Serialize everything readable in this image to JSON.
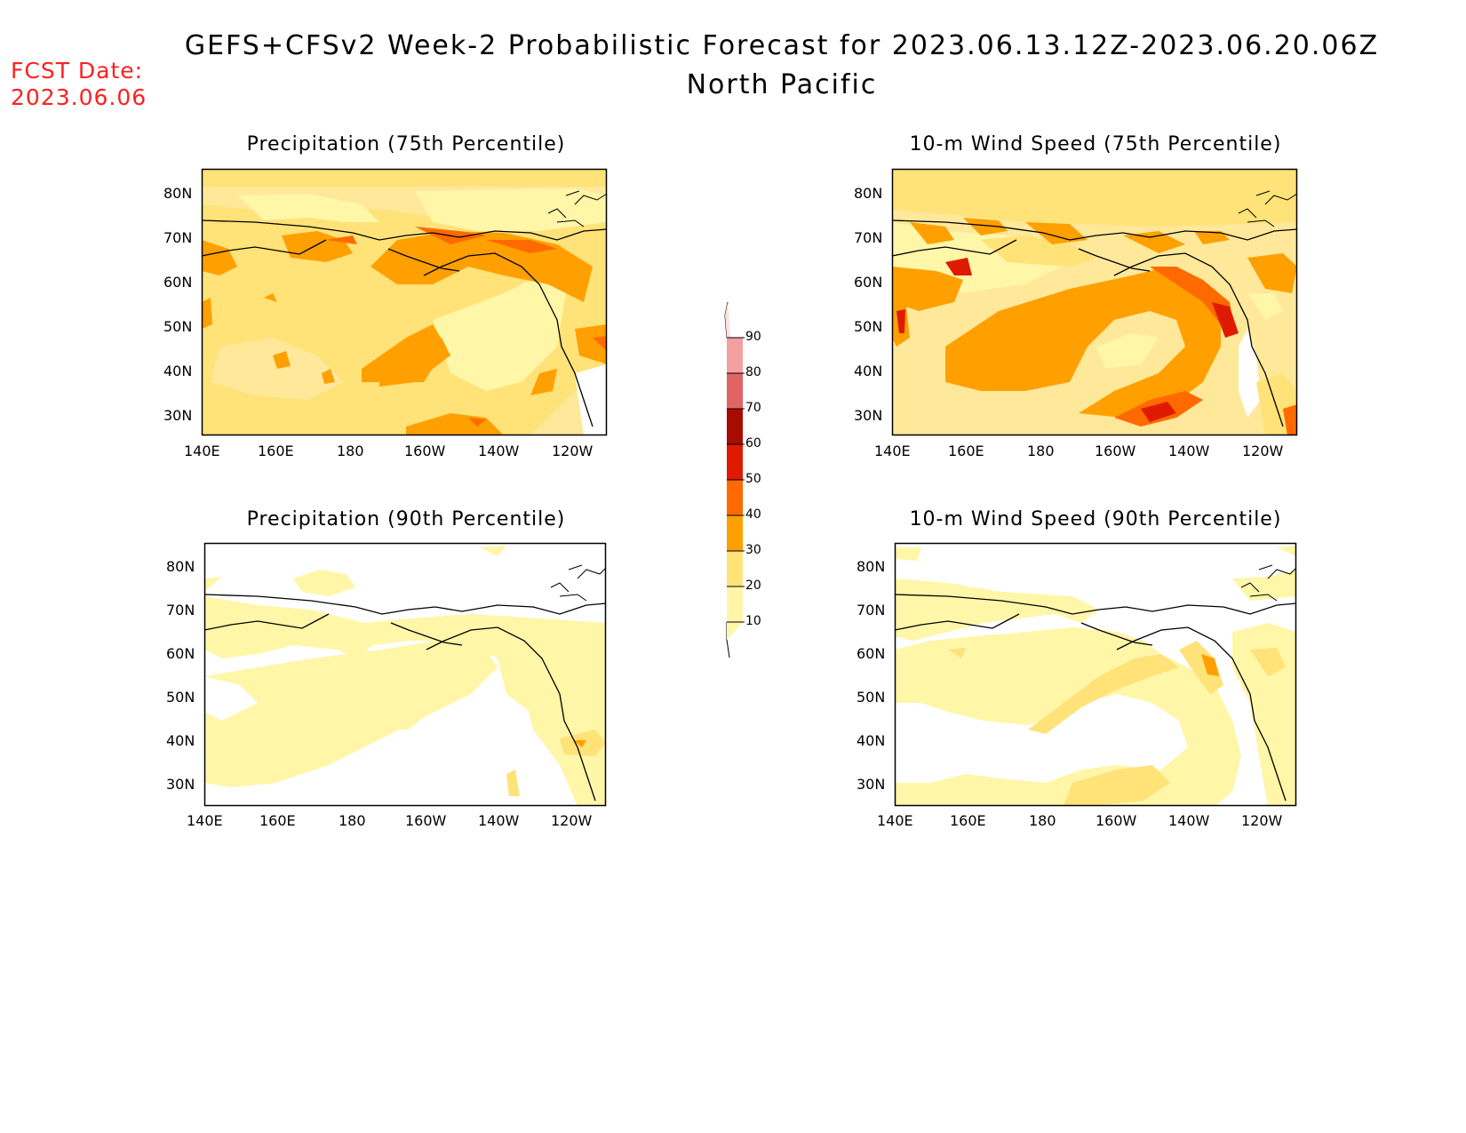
{
  "header": {
    "title": "GEFS+CFSv2 Week-2 Probabilistic Forecast for 2023.06.13.12Z-2023.06.20.06Z",
    "subtitle": "North Pacific",
    "fcst_label": "FCST Date:",
    "fcst_date": "2023.06.06"
  },
  "panels": [
    {
      "id": "precip75",
      "title": "Precipitation (75th Percentile)"
    },
    {
      "id": "wind75",
      "title": "10-m Wind Speed (75th Percentile)"
    },
    {
      "id": "precip90",
      "title": "Precipitation (90th Percentile)"
    },
    {
      "id": "wind90",
      "title": "10-m Wind Speed (90th Percentile)"
    }
  ],
  "axes": {
    "lat_labels": [
      "80N",
      "70N",
      "60N",
      "50N",
      "40N",
      "30N"
    ],
    "lon_labels": [
      "140E",
      "160E",
      "180",
      "160W",
      "140W",
      "120W"
    ]
  },
  "colorbar": {
    "levels": [
      "10",
      "20",
      "30",
      "40",
      "50",
      "60",
      "70",
      "80",
      "90"
    ],
    "colors": {
      "c10": "#fff6a8",
      "c20": "#ffe278",
      "c30": "#ffa000",
      "c40": "#ff6a00",
      "c50": "#e01a00",
      "c60": "#a80c00",
      "c70": "#e06464",
      "c80": "#f5a0a0",
      "c90": "#fde0e0"
    }
  }
}
